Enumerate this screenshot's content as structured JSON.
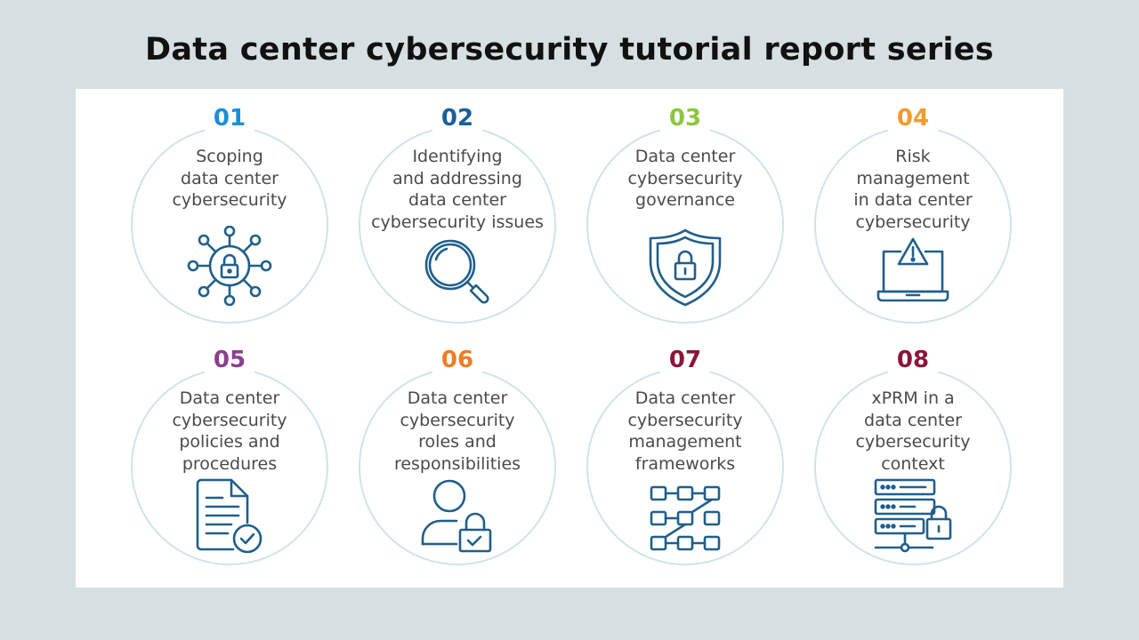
{
  "title": "Data center cybersecurity tutorial report series",
  "colors": {
    "background": "#d6dfe1",
    "panel": "#ffffff",
    "ring": "#cfe4e6",
    "icon": "#1f5f8b",
    "text": "#4a4a4a"
  },
  "items": [
    {
      "number": "01",
      "color": "#1b8fd6",
      "lines": [
        "Scoping",
        "data center",
        "cybersecurity"
      ],
      "icon": "network-lock-icon"
    },
    {
      "number": "02",
      "color": "#1a5f9a",
      "lines": [
        "Identifying",
        "and addressing",
        "data center",
        "cybersecurity issues"
      ],
      "icon": "magnifier-icon"
    },
    {
      "number": "03",
      "color": "#8cc63f",
      "lines": [
        "Data center",
        "cybersecurity",
        "governance"
      ],
      "icon": "shield-lock-icon"
    },
    {
      "number": "04",
      "color": "#f39a2e",
      "lines": [
        "Risk",
        "management",
        "in data center",
        "cybersecurity"
      ],
      "icon": "laptop-warning-icon"
    },
    {
      "number": "05",
      "color": "#8b3f8f",
      "lines": [
        "Data center",
        "cybersecurity",
        "policies and",
        "procedures"
      ],
      "icon": "document-check-icon"
    },
    {
      "number": "06",
      "color": "#ef7d22",
      "lines": [
        "Data center",
        "cybersecurity",
        "roles and",
        "responsibilities"
      ],
      "icon": "user-lock-icon"
    },
    {
      "number": "07",
      "color": "#8b1538",
      "lines": [
        "Data center",
        "cybersecurity",
        "management",
        "frameworks"
      ],
      "icon": "framework-grid-icon"
    },
    {
      "number": "08",
      "color": "#8b1538",
      "lines": [
        "xPRM in a",
        "data center",
        "cybersecurity",
        "context"
      ],
      "icon": "server-lock-icon"
    }
  ]
}
